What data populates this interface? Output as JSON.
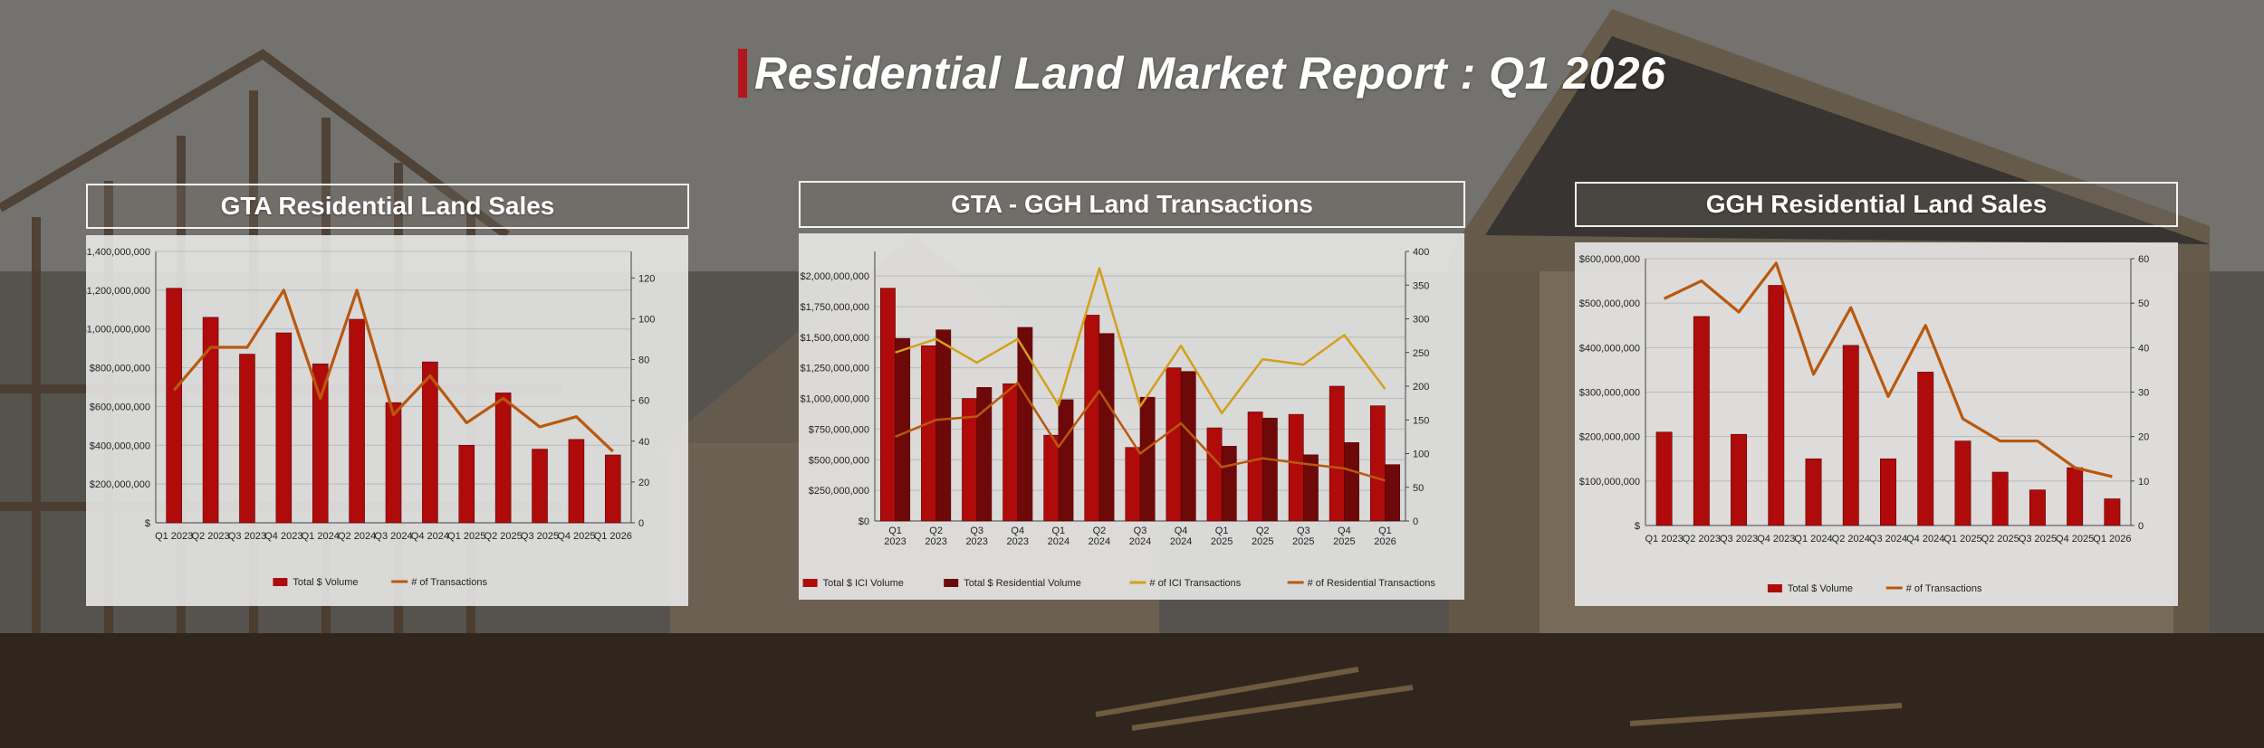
{
  "report": {
    "title": "Residential Land Market Report : Q1 2026",
    "accent_color": "#b3161c"
  },
  "panels": [
    {
      "title": "GTA Residential Land Sales"
    },
    {
      "title": "GTA - GGH Land Transactions"
    },
    {
      "title": "GGH Residential Land Sales"
    }
  ],
  "chart_data": [
    {
      "type": "bar",
      "title": "GTA Residential Land Sales",
      "categories": [
        "Q1 2023",
        "Q2 2023",
        "Q3 2023",
        "Q4 2023",
        "Q1 2024",
        "Q2 2024",
        "Q3 2024",
        "Q4 2024",
        "Q1 2025",
        "Q2 2025",
        "Q3 2025",
        "Q4 2025",
        "Q1 2026"
      ],
      "series": [
        {
          "name": "Total $ Volume",
          "kind": "bar",
          "axis": "left",
          "color": "#b00b0b",
          "values": [
            1210000000,
            1060000000,
            870000000,
            980000000,
            820000000,
            1050000000,
            620000000,
            830000000,
            400000000,
            670000000,
            380000000,
            430000000,
            350000000
          ]
        },
        {
          "name": "# of Transactions",
          "kind": "line",
          "axis": "right",
          "color": "#b9580e",
          "values": [
            65,
            86,
            86,
            114,
            61,
            114,
            53,
            72,
            49,
            61,
            47,
            52,
            35
          ]
        }
      ],
      "y_left": {
        "min": 0,
        "max": 1400000000,
        "step": 200000000,
        "tick_labels": [
          "$",
          "$200,000,000",
          "$400,000,000",
          "$600,000,000",
          "$800,000,000",
          "$1,000,000,000",
          "$1,200,000,000",
          "$1,400,000,000"
        ]
      },
      "y_right": {
        "min": 0,
        "max": 133,
        "step": 20,
        "tick_labels": [
          "0",
          "20",
          "40",
          "60",
          "80",
          "100",
          "120"
        ]
      },
      "grid": true,
      "legend": "bottom"
    },
    {
      "type": "bar",
      "title": "GTA - GGH Land Transactions",
      "categories": [
        "Q1\n2023",
        "Q2\n2023",
        "Q3\n2023",
        "Q4\n2023",
        "Q1\n2024",
        "Q2\n2024",
        "Q3\n2024",
        "Q4\n2024",
        "Q1\n2025",
        "Q2\n2025",
        "Q3\n2025",
        "Q4\n2025",
        "Q1\n2026"
      ],
      "series": [
        {
          "name": "Total $ ICI Volume",
          "kind": "bar",
          "axis": "left",
          "color": "#b00b0b",
          "values": [
            1900000000,
            1430000000,
            1000000000,
            1120000000,
            700000000,
            1680000000,
            600000000,
            1250000000,
            760000000,
            890000000,
            870000000,
            1100000000,
            940000000
          ]
        },
        {
          "name": "Total $ Residential Volume",
          "kind": "bar",
          "axis": "left",
          "color": "#6e0909",
          "values": [
            1490000000,
            1560000000,
            1090000000,
            1580000000,
            990000000,
            1530000000,
            1010000000,
            1220000000,
            610000000,
            840000000,
            540000000,
            640000000,
            460000000
          ]
        },
        {
          "name": "# of ICI Transactions",
          "kind": "line",
          "axis": "right",
          "color": "#d3a019",
          "values": [
            250,
            270,
            235,
            270,
            172,
            375,
            170,
            260,
            160,
            240,
            232,
            276,
            196
          ]
        },
        {
          "name": "# of Residential Transactions",
          "kind": "line",
          "axis": "right",
          "color": "#b9580e",
          "values": [
            125,
            150,
            155,
            205,
            110,
            193,
            100,
            145,
            80,
            93,
            85,
            78,
            60
          ]
        }
      ],
      "y_left": {
        "min": 0,
        "max": 2200000000,
        "step": 250000000,
        "tick_labels": [
          "$0",
          "$250,000,000",
          "$500,000,000",
          "$750,000,000",
          "$1,000,000,000",
          "$1,250,000,000",
          "$1,500,000,000",
          "$1,750,000,000",
          "$2,000,000,000"
        ]
      },
      "y_right": {
        "min": 0,
        "max": 400,
        "step": 50,
        "tick_labels": [
          "0",
          "50",
          "100",
          "150",
          "200",
          "250",
          "300",
          "350",
          "400"
        ]
      },
      "grid": true,
      "legend": "bottom"
    },
    {
      "type": "bar",
      "title": "GGH Residential Land Sales",
      "categories": [
        "Q1 2023",
        "Q2 2023",
        "Q3 2023",
        "Q4 2023",
        "Q1 2024",
        "Q2 2024",
        "Q3 2024",
        "Q4 2024",
        "Q1 2025",
        "Q2 2025",
        "Q3 2025",
        "Q4 2025",
        "Q1 2026"
      ],
      "series": [
        {
          "name": "Total $ Volume",
          "kind": "bar",
          "axis": "left",
          "color": "#b00b0b",
          "values": [
            210000000,
            470000000,
            205000000,
            540000000,
            150000000,
            405000000,
            150000000,
            345000000,
            190000000,
            120000000,
            80000000,
            130000000,
            60000000
          ]
        },
        {
          "name": "# of Transactions",
          "kind": "line",
          "axis": "right",
          "color": "#b9580e",
          "values": [
            51,
            55,
            48,
            59,
            34,
            49,
            29,
            45,
            24,
            19,
            19,
            13,
            11
          ]
        }
      ],
      "y_left": {
        "min": 0,
        "max": 600000000,
        "step": 100000000,
        "tick_labels": [
          "$",
          "$100,000,000",
          "$200,000,000",
          "$300,000,000",
          "$400,000,000",
          "$500,000,000",
          "$600,000,000"
        ]
      },
      "y_right": {
        "min": 0,
        "max": 60,
        "step": 10,
        "tick_labels": [
          "0",
          "10",
          "20",
          "30",
          "40",
          "50",
          "60"
        ]
      },
      "grid": true,
      "legend": "bottom"
    }
  ]
}
